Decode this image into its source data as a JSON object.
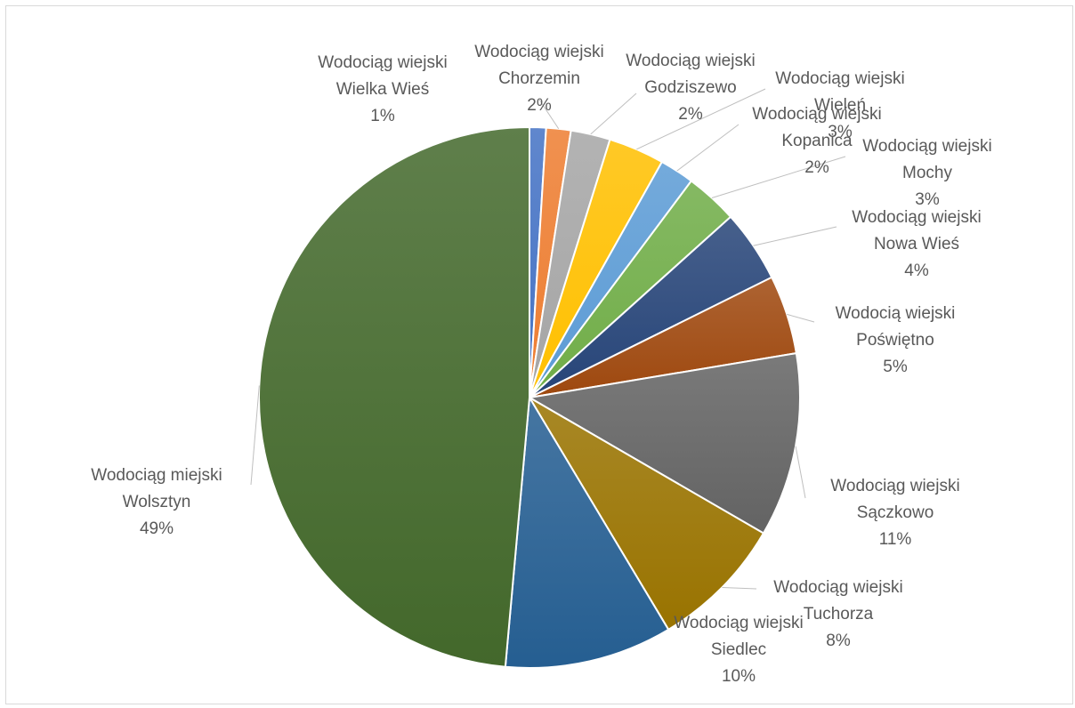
{
  "chart_data": {
    "type": "pie",
    "slices": [
      {
        "name": "Wodociąg wiejski Wielka Wieś",
        "line1": "Wodociąg wiejski",
        "line2": "Wielka Wieś",
        "pct_label": "1%",
        "value": 1,
        "color": "#4472c4"
      },
      {
        "name": "Wodociąg wiejski Chorzemin",
        "line1": "Wodociąg wiejski",
        "line2": "Chorzemin",
        "pct_label": "2%",
        "value": 1.5,
        "color": "#ed7d31"
      },
      {
        "name": "Wodociąg wiejski Godziszewo",
        "line1": "Wodociąg wiejski",
        "line2": "Godziszewo",
        "pct_label": "2%",
        "value": 2.4,
        "color": "#a5a5a5"
      },
      {
        "name": "Wodociąg wiejski Wieleń",
        "line1": "Wodociąg wiejski",
        "line2": "Wieleń",
        "pct_label": "3%",
        "value": 3.4,
        "color": "#ffc000"
      },
      {
        "name": "Wodociąg wiejski Kopanica",
        "line1": "Wodociąg wiejski",
        "line2": "Kopanica",
        "pct_label": "2%",
        "value": 2.1,
        "color": "#5b9bd5"
      },
      {
        "name": "Wodociąg wiejski Mochy",
        "line1": "Wodociąg wiejski",
        "line2": "Mochy",
        "pct_label": "3%",
        "value": 3.2,
        "color": "#70ad47"
      },
      {
        "name": "Wodociąg wiejski Nowa Wieś",
        "line1": "Wodociąg wiejski",
        "line2": "Nowa Wieś",
        "pct_label": "4%",
        "value": 4.4,
        "color": "#264478"
      },
      {
        "name": "Wodocią wiejski Poświętno",
        "line1": "Wodocią wiejski",
        "line2": "Poświętno",
        "pct_label": "5%",
        "value": 4.8,
        "color": "#9e480e"
      },
      {
        "name": "Wodociąg wiejski Sączkowo",
        "line1": "Wodociąg wiejski",
        "line2": "Sączkowo",
        "pct_label": "11%",
        "value": 11.2,
        "color": "#636363"
      },
      {
        "name": "Wodociąg wiejski Tuchorza",
        "line1": "Wodociąg wiejski",
        "line2": "Tuchorza",
        "pct_label": "8%",
        "value": 8.2,
        "color": "#997300"
      },
      {
        "name": "Wodociąg wiejski Siedlec",
        "line1": "Wodociąg wiejski",
        "line2": "Siedlec",
        "pct_label": "10%",
        "value": 10.2,
        "color": "#255e91"
      },
      {
        "name": "Wodociąg miejski Wolsztyn",
        "line1": "Wodociąg miejski",
        "line2": "Wolsztyn",
        "pct_label": "49%",
        "value": 49.5,
        "color": "#43682b"
      }
    ],
    "legend": "none",
    "data_labels": "outside with leader lines"
  }
}
